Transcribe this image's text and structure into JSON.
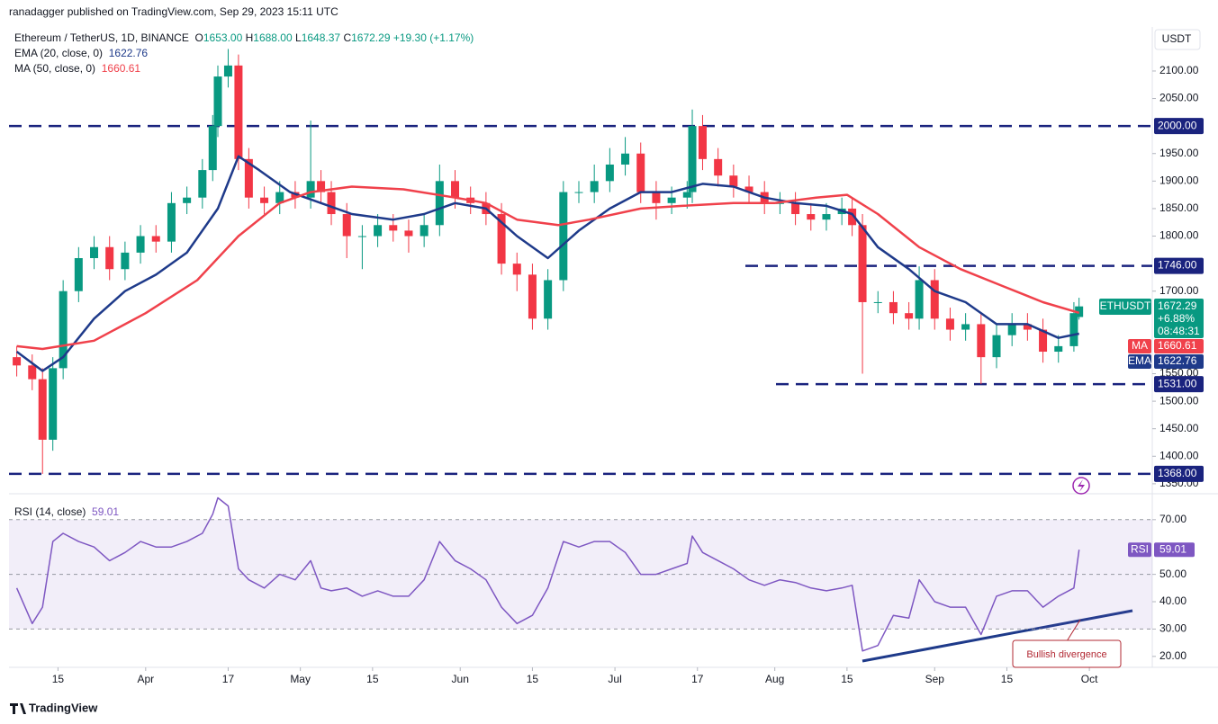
{
  "header": {
    "publisher": "ranadagger published on TradingView.com, Sep 29, 2023 15:11 UTC",
    "footer": "TradingView"
  },
  "chart_data": [
    {
      "type": "candlestick",
      "title": "Ethereum / TetherUS, 1D, BINANCE",
      "currency": "USDT",
      "quote": [
        {
          "key": "O",
          "value": "1653.00"
        },
        {
          "key": "H",
          "value": "1688.00"
        },
        {
          "key": "L",
          "value": "1648.37"
        },
        {
          "key": "C",
          "value": "1672.29"
        }
      ],
      "change": "+19.30 (+1.17%)",
      "up_color": "#089981",
      "down_color": "#f23645",
      "x": [
        -25,
        -22,
        -20,
        -18,
        -16,
        -13,
        -10,
        -7,
        -4,
        -1,
        2,
        5,
        8,
        11,
        13,
        14,
        16,
        18,
        20,
        23,
        26,
        29,
        32,
        34,
        36,
        39,
        42,
        45,
        48,
        51,
        54,
        57,
        60,
        63,
        66,
        69,
        72,
        75,
        78,
        81,
        84,
        87,
        90,
        93,
        96,
        99,
        102,
        105,
        106,
        108,
        111,
        114,
        117,
        120,
        123,
        126,
        129,
        132,
        135,
        137,
        139,
        142,
        145,
        148,
        150,
        153,
        156,
        159,
        162,
        165,
        168,
        171,
        174,
        177,
        180,
        181
      ],
      "open": [
        1580,
        1565,
        1540,
        1430,
        1560,
        1700,
        1760,
        1780,
        1740,
        1770,
        1800,
        1790,
        1860,
        1870,
        1920,
        2000,
        2090,
        2110,
        1940,
        1870,
        1860,
        1880,
        1870,
        1900,
        1880,
        1840,
        1800,
        1800,
        1820,
        1810,
        1800,
        1820,
        1900,
        1870,
        1860,
        1840,
        1750,
        1730,
        1650,
        1720,
        1880,
        1880,
        1900,
        1930,
        1950,
        1880,
        1860,
        1870,
        1880,
        2000,
        1940,
        1910,
        1890,
        1880,
        1860,
        1860,
        1840,
        1830,
        1840,
        1850,
        1820,
        1680,
        1680,
        1660,
        1650,
        1720,
        1650,
        1630,
        1640,
        1580,
        1620,
        1640,
        1630,
        1590,
        1600,
        1653
      ],
      "high": [
        1600,
        1585,
        1560,
        1580,
        1720,
        1780,
        1800,
        1800,
        1790,
        1820,
        1820,
        1880,
        1890,
        1940,
        2020,
        2110,
        2140,
        2130,
        1960,
        1890,
        1900,
        1900,
        2010,
        1920,
        1900,
        1860,
        1820,
        1840,
        1840,
        1830,
        1840,
        1930,
        1920,
        1890,
        1880,
        1860,
        1770,
        1750,
        1740,
        1900,
        1900,
        1930,
        1960,
        1980,
        1970,
        1900,
        1890,
        1900,
        2030,
        2020,
        1960,
        1930,
        1910,
        1900,
        1880,
        1880,
        1860,
        1860,
        1870,
        1870,
        1840,
        1700,
        1700,
        1680,
        1745,
        1740,
        1670,
        1660,
        1660,
        1640,
        1660,
        1660,
        1650,
        1620,
        1680,
        1688
      ],
      "low": [
        1545,
        1520,
        1368,
        1410,
        1540,
        1680,
        1740,
        1720,
        1720,
        1750,
        1770,
        1770,
        1840,
        1850,
        1900,
        1980,
        2070,
        1920,
        1850,
        1840,
        1840,
        1850,
        1850,
        1860,
        1820,
        1760,
        1740,
        1780,
        1790,
        1770,
        1780,
        1800,
        1850,
        1840,
        1820,
        1730,
        1700,
        1630,
        1630,
        1700,
        1860,
        1860,
        1880,
        1910,
        1860,
        1830,
        1840,
        1850,
        1860,
        1920,
        1890,
        1870,
        1860,
        1840,
        1840,
        1820,
        1810,
        1810,
        1820,
        1800,
        1550,
        1660,
        1640,
        1630,
        1630,
        1630,
        1610,
        1610,
        1531,
        1560,
        1600,
        1610,
        1570,
        1570,
        1590,
        1648.37
      ],
      "close": [
        1565,
        1540,
        1430,
        1560,
        1700,
        1760,
        1780,
        1740,
        1770,
        1800,
        1790,
        1860,
        1870,
        1920,
        2000,
        2090,
        2110,
        1940,
        1870,
        1860,
        1880,
        1870,
        1900,
        1880,
        1840,
        1800,
        1800,
        1820,
        1810,
        1800,
        1820,
        1900,
        1870,
        1860,
        1840,
        1750,
        1730,
        1650,
        1720,
        1880,
        1880,
        1900,
        1930,
        1950,
        1880,
        1860,
        1870,
        1880,
        2000,
        1940,
        1910,
        1890,
        1880,
        1860,
        1860,
        1840,
        1830,
        1840,
        1850,
        1820,
        1680,
        1680,
        1660,
        1650,
        1720,
        1650,
        1630,
        1640,
        1580,
        1620,
        1640,
        1630,
        1590,
        1600,
        1660,
        1672.29
      ],
      "series": [
        {
          "name": "EMA (20, close, 0)",
          "tag": "EMA",
          "color": "#1e3a8a",
          "x": [
            -25,
            -20,
            -16,
            -10,
            -4,
            2,
            8,
            14,
            18,
            22,
            28,
            34,
            40,
            48,
            54,
            60,
            66,
            72,
            78,
            84,
            90,
            96,
            102,
            108,
            114,
            120,
            126,
            132,
            137,
            142,
            148,
            153,
            159,
            165,
            171,
            177,
            181
          ],
          "values": [
            1590,
            1555,
            1580,
            1650,
            1700,
            1730,
            1770,
            1850,
            1945,
            1920,
            1880,
            1860,
            1840,
            1830,
            1840,
            1860,
            1850,
            1800,
            1760,
            1810,
            1850,
            1880,
            1880,
            1895,
            1890,
            1870,
            1860,
            1855,
            1840,
            1780,
            1740,
            1700,
            1680,
            1640,
            1640,
            1615,
            1622.76
          ]
        },
        {
          "name": "MA (50, close, 0)",
          "tag": "MA",
          "color": "#f0414b",
          "x": [
            -25,
            -20,
            -10,
            0,
            10,
            18,
            26,
            32,
            40,
            50,
            60,
            66,
            72,
            80,
            86,
            96,
            104,
            114,
            122,
            130,
            136,
            142,
            150,
            158,
            166,
            174,
            181
          ],
          "values": [
            1600,
            1595,
            1610,
            1660,
            1720,
            1800,
            1860,
            1880,
            1890,
            1885,
            1870,
            1860,
            1830,
            1820,
            1830,
            1850,
            1855,
            1860,
            1860,
            1870,
            1875,
            1840,
            1780,
            1740,
            1710,
            1680,
            1660.61
          ]
        }
      ],
      "price_tag": {
        "symbol": "ETHUSDT",
        "change": "+6.88%",
        "countdown": "08:48:31"
      },
      "levels": [
        {
          "value": 2000,
          "label": "2000.00"
        },
        {
          "value": 1746,
          "label": "1746.00"
        },
        {
          "value": 1531,
          "label": "1531.00"
        },
        {
          "value": 1368,
          "label": "1368.00"
        }
      ],
      "level_color": "#1a237e",
      "xlim": [
        -26.5,
        195.2
      ],
      "ylim": [
        1340,
        2180
      ],
      "yticks": [
        {
          "value": 2100,
          "label": "2100.00"
        },
        {
          "value": 2050,
          "label": "2050.00"
        },
        {
          "value": 1950,
          "label": "1950.00"
        },
        {
          "value": 1900,
          "label": "1900.00"
        },
        {
          "value": 1850,
          "label": "1850.00"
        },
        {
          "value": 1800,
          "label": "1800.00"
        },
        {
          "value": 1700,
          "label": "1700.00"
        },
        {
          "value": 1550,
          "label": "1550.00"
        },
        {
          "value": 1500,
          "label": "1500.00"
        },
        {
          "value": 1450,
          "label": "1450.00"
        },
        {
          "value": 1400,
          "label": "1400.00"
        },
        {
          "value": 1350,
          "label": "1350.00"
        }
      ]
    },
    {
      "type": "line",
      "title": "RSI (14, close)",
      "tag": "RSI",
      "color": "#7e57c2",
      "x": [
        -25,
        -22,
        -20,
        -18,
        -16,
        -13,
        -10,
        -7,
        -4,
        -1,
        2,
        5,
        8,
        11,
        13,
        14,
        16,
        18,
        20,
        23,
        26,
        29,
        32,
        34,
        36,
        39,
        42,
        45,
        48,
        51,
        54,
        57,
        60,
        63,
        66,
        69,
        72,
        75,
        78,
        81,
        84,
        87,
        90,
        93,
        96,
        99,
        102,
        105,
        106,
        108,
        111,
        114,
        117,
        120,
        123,
        126,
        129,
        132,
        135,
        137,
        139,
        142,
        145,
        148,
        150,
        153,
        156,
        159,
        162,
        165,
        168,
        171,
        174,
        177,
        180,
        181
      ],
      "values": [
        45,
        32,
        38,
        62,
        65,
        62,
        60,
        55,
        58,
        62,
        60,
        60,
        62,
        65,
        72,
        78,
        75,
        52,
        48,
        45,
        50,
        48,
        55,
        45,
        44,
        45,
        42,
        44,
        42,
        42,
        48,
        62,
        55,
        52,
        48,
        38,
        32,
        35,
        45,
        62,
        60,
        62,
        62,
        58,
        50,
        50,
        52,
        54,
        64,
        58,
        55,
        52,
        48,
        46,
        48,
        47,
        45,
        44,
        45,
        46,
        22,
        24,
        35,
        34,
        48,
        40,
        38,
        38,
        28,
        42,
        44,
        44,
        38,
        42,
        45,
        59.01
      ],
      "band": [
        30,
        70
      ],
      "levels": [
        70,
        50,
        30
      ],
      "annotations": [
        "Bullish divergence"
      ],
      "xlim": [
        -26.5,
        195.2
      ],
      "ylim": [
        16,
        77.5
      ],
      "yticks": [
        {
          "value": 70,
          "label": "70.00"
        },
        {
          "value": 50,
          "label": "50.00"
        },
        {
          "value": 40,
          "label": "40.00"
        },
        {
          "value": 30,
          "label": "30.00"
        },
        {
          "value": 20,
          "label": "20.00"
        }
      ],
      "xticks": [
        {
          "value": -17,
          "label": "15"
        },
        {
          "value": 0,
          "label": "Apr"
        },
        {
          "value": 16,
          "label": "17"
        },
        {
          "value": 30,
          "label": "May"
        },
        {
          "value": 44,
          "label": "15"
        },
        {
          "value": 61,
          "label": "Jun"
        },
        {
          "value": 75,
          "label": "15"
        },
        {
          "value": 91,
          "label": "Jul"
        },
        {
          "value": 107,
          "label": "17"
        },
        {
          "value": 122,
          "label": "Aug"
        },
        {
          "value": 136,
          "label": "15"
        },
        {
          "value": 153,
          "label": "Sep"
        },
        {
          "value": 167,
          "label": "15"
        },
        {
          "value": 183,
          "label": "Oct"
        }
      ]
    }
  ]
}
